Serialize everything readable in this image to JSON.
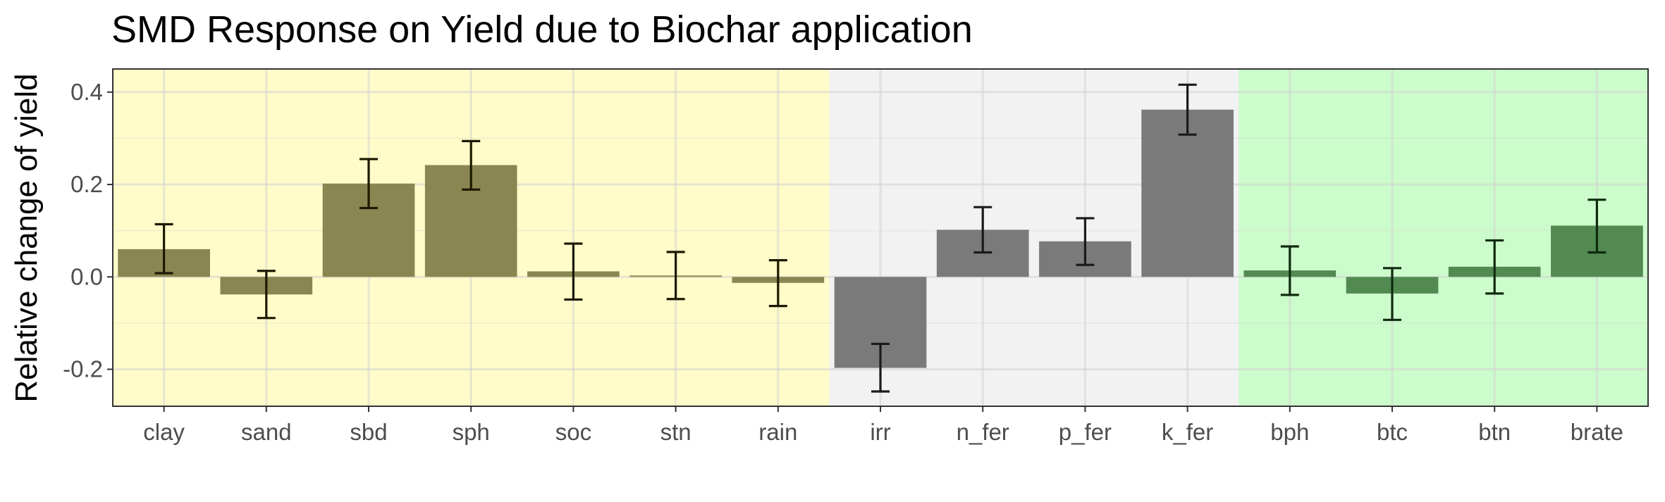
{
  "chart_data": {
    "type": "bar",
    "title": "SMD Response on Yield due to Biochar application",
    "xlabel": "",
    "ylabel": "Relative change of yield",
    "ylim": [
      -0.28,
      0.45
    ],
    "yticks": [
      -0.2,
      0.0,
      0.2,
      0.4
    ],
    "ytick_labels": [
      "-0.2",
      "0.0",
      "0.2",
      "0.4"
    ],
    "grid": true,
    "categories": [
      "clay",
      "sand",
      "sbd",
      "sph",
      "soc",
      "stn",
      "rain",
      "irr",
      "n_fer",
      "p_fer",
      "k_fer",
      "bph",
      "btc",
      "btn",
      "brate"
    ],
    "values": [
      0.06,
      -0.038,
      0.202,
      0.242,
      0.012,
      0.003,
      -0.013,
      -0.197,
      0.102,
      0.077,
      0.362,
      0.014,
      -0.036,
      0.022,
      0.111
    ],
    "err_low": [
      0.008,
      -0.089,
      0.149,
      0.189,
      -0.049,
      -0.048,
      -0.063,
      -0.248,
      0.053,
      0.026,
      0.308,
      -0.039,
      -0.093,
      -0.036,
      0.053
    ],
    "err_high": [
      0.114,
      0.013,
      0.255,
      0.294,
      0.072,
      0.054,
      0.036,
      -0.145,
      0.151,
      0.127,
      0.416,
      0.066,
      0.019,
      0.079,
      0.167
    ],
    "groups": [
      {
        "start": 0,
        "end": 6,
        "bg_color": "#fffcc9",
        "bar_color": "#8a8652",
        "err_color": "#1c1a00"
      },
      {
        "start": 7,
        "end": 10,
        "bg_color": "#f2f2f2",
        "bar_color": "#7a7a7a",
        "err_color": "#1a1a1a"
      },
      {
        "start": 11,
        "end": 14,
        "bg_color": "#ccfccb",
        "bar_color": "#528a52",
        "err_color": "#0f2a0f"
      }
    ]
  }
}
